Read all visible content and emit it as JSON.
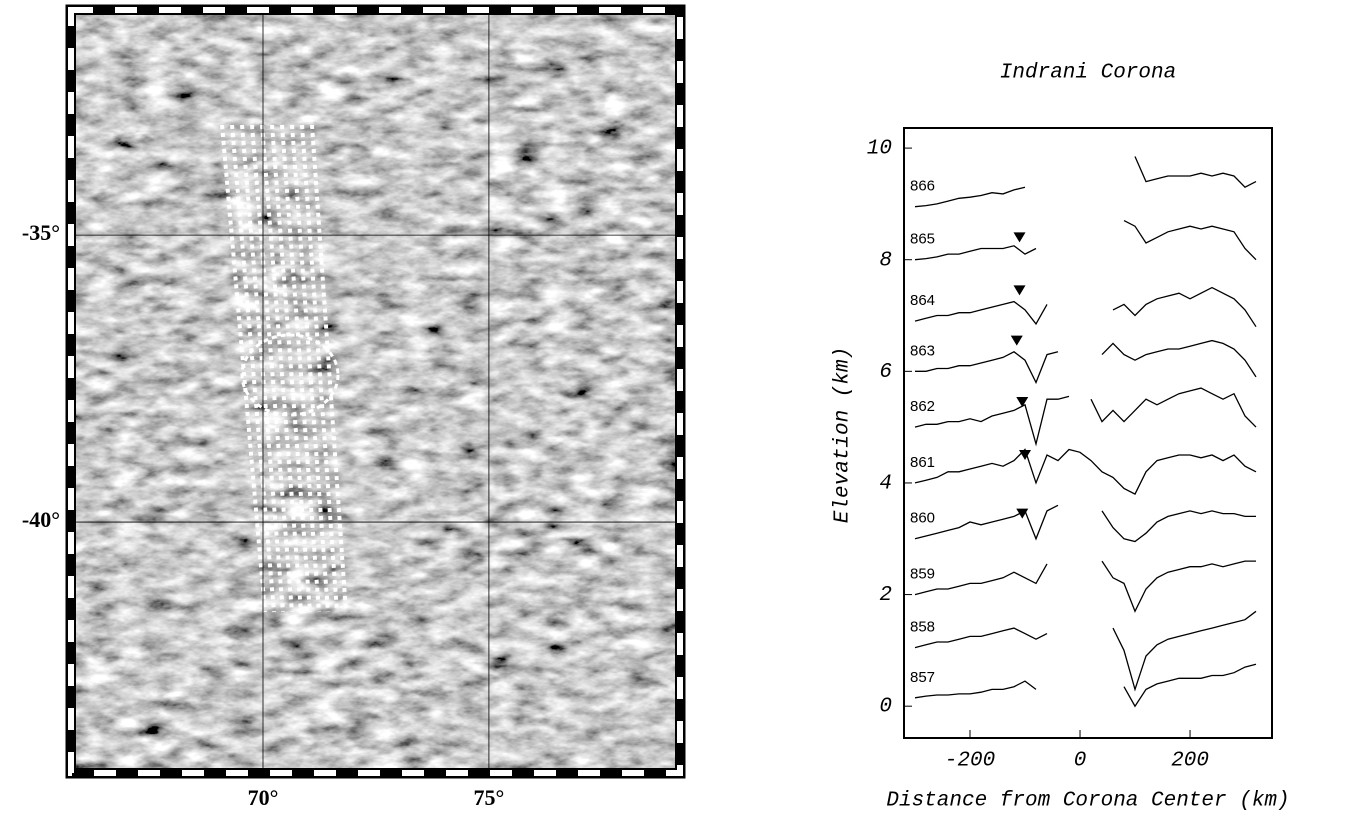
{
  "chart_data": [
    {
      "type": "map",
      "xlim": [
        65.64,
        79.34
      ],
      "ylim": [
        -44.46,
        -30.99
      ],
      "xticks": [
        {
          "value": 70,
          "label": "70°"
        },
        {
          "value": 75,
          "label": "75°"
        }
      ],
      "yticks": [
        {
          "value": -35,
          "label": "-35°"
        },
        {
          "value": -40,
          "label": "-40°"
        }
      ],
      "grid": true
    },
    {
      "type": "line",
      "title": "Indrani Corona",
      "xlabel": "Distance from Corona Center (km)",
      "ylabel": "Elevation (km)",
      "xlim": [
        -320,
        349
      ],
      "ylim": [
        -0.57,
        10.36
      ],
      "xticks": [
        -200,
        0,
        200
      ],
      "yticks": [
        0,
        2,
        4,
        6,
        8,
        10
      ],
      "x": [
        -300,
        -280,
        -260,
        -240,
        -220,
        -200,
        -180,
        -160,
        -140,
        -120,
        -100,
        -80,
        -60,
        -40,
        -20,
        0,
        20,
        40,
        60,
        80,
        100,
        120,
        140,
        160,
        180,
        200,
        220,
        240,
        260,
        280,
        300,
        320
      ],
      "series": [
        {
          "name": "857",
          "color": "#000000",
          "values": [
            0.15,
            0.18,
            0.2,
            0.2,
            0.22,
            0.22,
            0.25,
            0.3,
            0.3,
            0.35,
            0.45,
            0.3,
            null,
            null,
            null,
            null,
            null,
            null,
            null,
            0.35,
            0.0,
            0.3,
            0.4,
            0.45,
            0.5,
            0.5,
            0.5,
            0.55,
            0.55,
            0.6,
            0.7,
            0.75
          ]
        },
        {
          "name": "858",
          "color": "#000000",
          "values": [
            1.05,
            1.1,
            1.15,
            1.15,
            1.2,
            1.25,
            1.25,
            1.3,
            1.35,
            1.4,
            1.3,
            1.2,
            1.3,
            null,
            null,
            null,
            null,
            null,
            1.4,
            1.0,
            0.3,
            0.9,
            1.1,
            1.2,
            1.25,
            1.3,
            1.35,
            1.4,
            1.45,
            1.5,
            1.55,
            1.7
          ]
        },
        {
          "name": "859",
          "color": "#000000",
          "values": [
            2.0,
            2.05,
            2.1,
            2.1,
            2.15,
            2.2,
            2.2,
            2.25,
            2.3,
            2.4,
            2.3,
            2.2,
            2.55,
            null,
            null,
            null,
            null,
            2.6,
            2.3,
            2.2,
            1.7,
            2.1,
            2.3,
            2.4,
            2.45,
            2.5,
            2.5,
            2.55,
            2.5,
            2.55,
            2.6,
            2.6
          ]
        },
        {
          "name": "860",
          "color": "#000000",
          "values": [
            3.0,
            3.05,
            3.1,
            3.15,
            3.2,
            3.3,
            3.25,
            3.3,
            3.35,
            3.4,
            3.5,
            3.0,
            3.5,
            3.6,
            null,
            null,
            null,
            3.5,
            3.2,
            3.0,
            2.95,
            3.1,
            3.3,
            3.4,
            3.45,
            3.5,
            3.45,
            3.5,
            3.45,
            3.45,
            3.4,
            3.4
          ]
        },
        {
          "name": "861",
          "color": "#000000",
          "values": [
            4.0,
            4.05,
            4.1,
            4.2,
            4.2,
            4.25,
            4.3,
            4.35,
            4.3,
            4.4,
            4.6,
            4.0,
            4.5,
            4.4,
            4.6,
            4.55,
            4.4,
            4.2,
            4.1,
            3.9,
            3.8,
            4.2,
            4.4,
            4.45,
            4.5,
            4.5,
            4.45,
            4.5,
            4.4,
            4.5,
            4.3,
            4.2
          ]
        },
        {
          "name": "862",
          "color": "#000000",
          "values": [
            5.0,
            5.05,
            5.05,
            5.1,
            5.1,
            5.15,
            5.1,
            5.2,
            5.25,
            5.3,
            5.4,
            4.7,
            5.5,
            5.5,
            5.55,
            null,
            5.5,
            5.1,
            5.3,
            5.1,
            5.3,
            5.5,
            5.4,
            5.5,
            5.6,
            5.65,
            5.7,
            5.6,
            5.5,
            5.6,
            5.2,
            5.0
          ]
        },
        {
          "name": "863",
          "color": "#000000",
          "values": [
            6.0,
            6.0,
            6.05,
            6.05,
            6.1,
            6.1,
            6.15,
            6.2,
            6.25,
            6.35,
            6.2,
            5.8,
            6.3,
            6.35,
            null,
            null,
            null,
            6.3,
            6.5,
            6.3,
            6.2,
            6.3,
            6.35,
            6.4,
            6.4,
            6.45,
            6.5,
            6.55,
            6.5,
            6.4,
            6.2,
            5.9
          ]
        },
        {
          "name": "864",
          "color": "#000000",
          "values": [
            6.9,
            6.95,
            7.0,
            7.0,
            7.05,
            7.05,
            7.1,
            7.15,
            7.2,
            7.25,
            7.1,
            6.85,
            7.2,
            null,
            null,
            null,
            null,
            null,
            7.1,
            7.2,
            7.0,
            7.2,
            7.3,
            7.35,
            7.4,
            7.3,
            7.4,
            7.5,
            7.4,
            7.3,
            7.1,
            6.8
          ]
        },
        {
          "name": "865",
          "color": "#000000",
          "values": [
            8.0,
            8.02,
            8.05,
            8.1,
            8.1,
            8.15,
            8.2,
            8.2,
            8.2,
            8.25,
            8.1,
            8.2,
            null,
            null,
            null,
            null,
            null,
            null,
            null,
            8.7,
            8.6,
            8.3,
            8.4,
            8.5,
            8.55,
            8.6,
            8.55,
            8.6,
            8.55,
            8.5,
            8.2,
            8.0
          ]
        },
        {
          "name": "866",
          "color": "#000000",
          "values": [
            8.95,
            8.97,
            9.0,
            9.05,
            9.1,
            9.12,
            9.15,
            9.2,
            9.18,
            9.25,
            9.3,
            null,
            null,
            null,
            null,
            null,
            null,
            null,
            null,
            null,
            9.85,
            9.4,
            9.45,
            9.5,
            9.5,
            9.5,
            9.55,
            9.5,
            9.55,
            9.5,
            9.3,
            9.4
          ]
        }
      ],
      "markers": [
        {
          "x": -105,
          "y": 3.45
        },
        {
          "x": -100,
          "y": 4.5
        },
        {
          "x": -105,
          "y": 5.45
        },
        {
          "x": -115,
          "y": 6.55
        },
        {
          "x": -110,
          "y": 7.45
        },
        {
          "x": -110,
          "y": 8.4
        }
      ]
    }
  ]
}
